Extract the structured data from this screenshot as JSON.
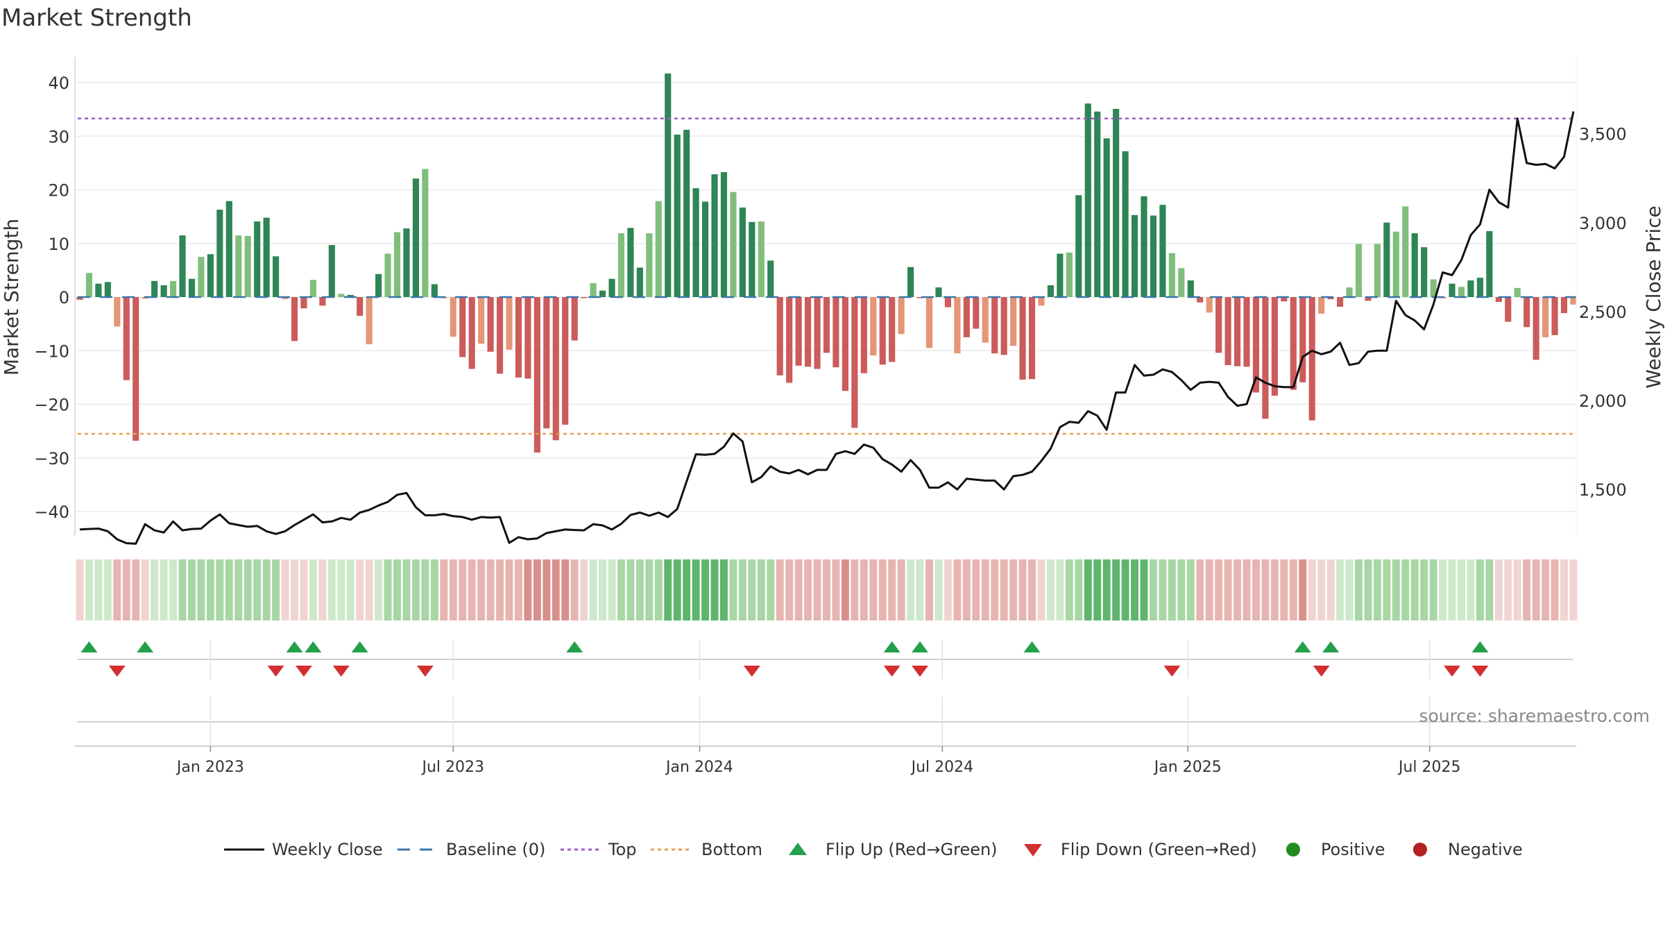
{
  "chart_data": {
    "type": "bar",
    "title": "Market Strength",
    "left_axis": {
      "label": "Market Strength",
      "range": [
        -45,
        45
      ],
      "ticks": [
        40,
        30,
        20,
        10,
        0,
        -10,
        -20,
        -30,
        -40
      ],
      "tick_labels": [
        "40",
        "30",
        "20",
        "10",
        "0",
        "−10",
        "−20",
        "−30",
        "−40"
      ]
    },
    "right_axis": {
      "label": "Weekly Close Price",
      "range": [
        1025,
        3725
      ],
      "ticks": [
        3500,
        3000,
        2500,
        2000,
        1500
      ],
      "tick_labels": [
        "3,500",
        "3,000",
        "2,500",
        "2,000",
        "1,500"
      ]
    },
    "x_axis": {
      "start": "2022-09-26",
      "weeks": 157,
      "ticks": [
        {
          "label": "Jan 2023",
          "week": 14
        },
        {
          "label": "Jul 2023",
          "week": 40
        },
        {
          "label": "Jan 2024",
          "week": 66.4
        },
        {
          "label": "Jul 2024",
          "week": 92.4
        },
        {
          "label": "Jan 2025",
          "week": 118.7
        },
        {
          "label": "Jul 2025",
          "week": 144.6
        }
      ]
    },
    "reference_lines": {
      "baseline": 0,
      "top": 33.3,
      "bottom": -25.5
    },
    "strength": [
      -0.5,
      4.5,
      2.5,
      2.8,
      -5.5,
      -15.5,
      -26.8,
      -0.3,
      3,
      2.2,
      3,
      11.5,
      3.4,
      7.5,
      8,
      16.3,
      17.9,
      11.5,
      11.4,
      14.1,
      14.8,
      7.6,
      -0.4,
      -8.2,
      -2.1,
      3.2,
      -1.6,
      9.7,
      0.6,
      0.4,
      -3.5,
      -8.8,
      4.3,
      8.1,
      12.1,
      12.8,
      22.1,
      23.9,
      2.4,
      -0.2,
      -7.4,
      -11.2,
      -13.4,
      -8.7,
      -10.2,
      -14.3,
      -9.8,
      -15,
      -15.2,
      -29,
      -24.5,
      -26.7,
      -23.8,
      -8.1,
      -0.2,
      2.6,
      1.2,
      3.4,
      11.9,
      12.9,
      5.5,
      11.9,
      17.9,
      41.7,
      30.3,
      31.2,
      20.3,
      17.8,
      22.9,
      23.3,
      19.6,
      16.7,
      14,
      14.1,
      6.8,
      -14.6,
      -16,
      -12.8,
      -13,
      -13.4,
      -10.4,
      -13.1,
      -17.5,
      -24.4,
      -14.2,
      -10.9,
      -12.6,
      -12.1,
      -6.9,
      5.6,
      -0.2,
      -9.5,
      1.8,
      -1.9,
      -10.5,
      -7.5,
      -5.9,
      -8.5,
      -10.5,
      -10.8,
      -9.1,
      -15.4,
      -15.3,
      -1.6,
      2.2,
      8.1,
      8.3,
      19,
      36.1,
      34.6,
      29.6,
      35.1,
      27.2,
      15.3,
      18.8,
      15.2,
      17.2,
      8.2,
      5.4,
      3.1,
      -1,
      -2.9,
      -10.4,
      -12.7,
      -12.9,
      -13,
      -17.8,
      -22.7,
      -18.4,
      -0.8,
      -17.3,
      -15.9,
      -23,
      -3.1,
      -0.4,
      -1.8,
      1.8,
      9.9,
      -0.7,
      9.9,
      13.9,
      12.2,
      16.9,
      11.9,
      9.3,
      3.3,
      -0.2,
      2.5,
      1.9,
      3.1,
      3.6,
      12.3,
      -0.9,
      -4.6,
      1.7,
      -5.6,
      -11.7,
      -7.5,
      -7.1,
      -3,
      -1.4
    ],
    "price": [
      1275,
      1278,
      1280,
      1265,
      1220,
      1198,
      1195,
      1305,
      1270,
      1258,
      1320,
      1270,
      1278,
      1280,
      1325,
      1360,
      1310,
      1300,
      1290,
      1295,
      1265,
      1250,
      1265,
      1300,
      1330,
      1360,
      1315,
      1320,
      1340,
      1330,
      1370,
      1385,
      1410,
      1430,
      1470,
      1480,
      1400,
      1355,
      1355,
      1362,
      1350,
      1345,
      1330,
      1345,
      1342,
      1345,
      1200,
      1232,
      1220,
      1225,
      1255,
      1265,
      1275,
      1272,
      1270,
      1305,
      1298,
      1275,
      1307,
      1357,
      1370,
      1352,
      1370,
      1345,
      1390,
      1545,
      1698,
      1695,
      1700,
      1740,
      1815,
      1770,
      1540,
      1570,
      1630,
      1600,
      1590,
      1610,
      1585,
      1610,
      1610,
      1700,
      1715,
      1700,
      1752,
      1735,
      1670,
      1640,
      1600,
      1665,
      1610,
      1510,
      1510,
      1540,
      1500,
      1560,
      1555,
      1550,
      1550,
      1500,
      1575,
      1582,
      1600,
      1660,
      1730,
      1850,
      1880,
      1875,
      1940,
      1915,
      1835,
      2045,
      2045,
      2200,
      2140,
      2145,
      2175,
      2160,
      2115,
      2060,
      2100,
      2105,
      2100,
      2020,
      1970,
      1980,
      2130,
      2100,
      2080,
      2075,
      2075,
      2245,
      2280,
      2260,
      2275,
      2325,
      2200,
      2210,
      2275,
      2280,
      2280,
      2560,
      2480,
      2450,
      2400,
      2540,
      2720,
      2705,
      2790,
      2930,
      2990,
      3185,
      3115,
      3085,
      3585,
      3335,
      3325,
      3330,
      3305,
      3370,
      3625
    ],
    "regime_level": [
      -1,
      1,
      1,
      1,
      -2,
      -2,
      -2,
      -1,
      1,
      1,
      1,
      2,
      2,
      2,
      2,
      2,
      2,
      2,
      2,
      2,
      2,
      2,
      -1,
      -1,
      -1,
      1,
      -1,
      1,
      1,
      1,
      -1,
      -1,
      1,
      2,
      2,
      2,
      2,
      2,
      2,
      -2,
      -2,
      -2,
      -2,
      -2,
      -2,
      -2,
      -2,
      -2,
      -3,
      -3,
      -3,
      -3,
      -3,
      -2,
      -1,
      1,
      1,
      1,
      2,
      2,
      2,
      2,
      2,
      3,
      3,
      3,
      3,
      3,
      3,
      3,
      2,
      2,
      2,
      2,
      2,
      -2,
      -2,
      -2,
      -2,
      -2,
      -2,
      -2,
      -3,
      -2,
      -2,
      -2,
      -2,
      -2,
      -2,
      1,
      1,
      -2,
      1,
      -1,
      -2,
      -2,
      -2,
      -2,
      -2,
      -2,
      -2,
      -2,
      -2,
      -1,
      1,
      1,
      2,
      2,
      3,
      3,
      3,
      3,
      3,
      3,
      3,
      2,
      2,
      2,
      2,
      2,
      -2,
      -2,
      -2,
      -2,
      -2,
      -2,
      -2,
      -2,
      -2,
      -2,
      -2,
      -3,
      -1,
      -1,
      -1,
      1,
      1,
      2,
      2,
      2,
      2,
      2,
      2,
      2,
      2,
      2,
      1,
      1,
      1,
      1,
      2,
      2,
      -1,
      -1,
      -1,
      -2,
      -2,
      -2,
      -2,
      -1,
      -1
    ],
    "flip_up_weeks": [
      1,
      7,
      23,
      25,
      30,
      53,
      87,
      90,
      102,
      131,
      134,
      150
    ],
    "flip_down_weeks": [
      4,
      21,
      24,
      28,
      37,
      72,
      87,
      90,
      117,
      133,
      147,
      150
    ],
    "legend": [
      "Weekly Close",
      "Baseline (0)",
      "Top",
      "Bottom",
      "Flip Up (Red→Green)",
      "Flip Down (Green→Red)",
      "Positive",
      "Negative"
    ]
  },
  "colors": {
    "pos_strong": "#2e8555",
    "pos_light": "#7fbf7b",
    "neg_strong": "#cc5b5b",
    "neg_light": "#e49676",
    "price_line": "#111111",
    "baseline": "#3a76a8",
    "top": "#a05cc8",
    "bottom": "#e8a050",
    "flip_up": "#22a04b",
    "flip_down": "#d32f2f",
    "positive": "#228b22",
    "negative": "#b22222"
  },
  "source": "source: sharemaestro.com"
}
